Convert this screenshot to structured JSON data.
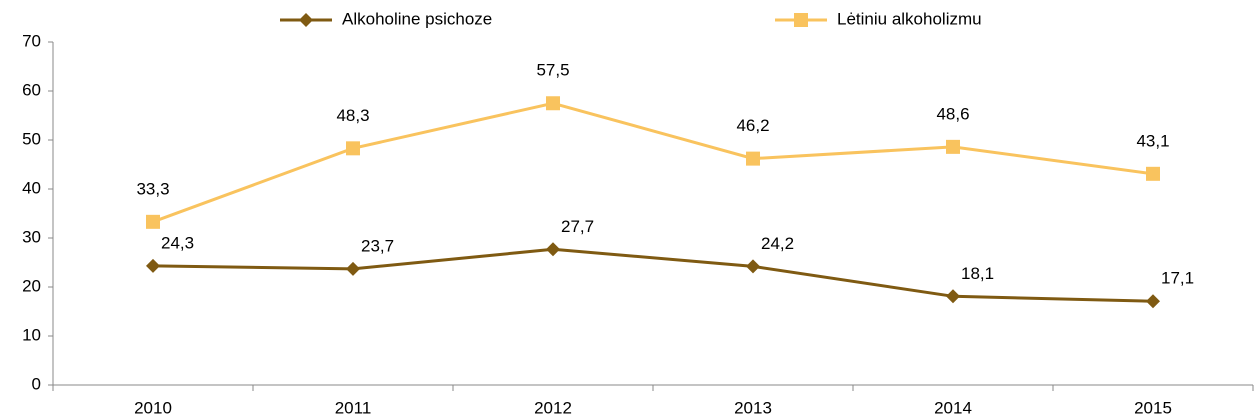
{
  "chart_data": {
    "type": "line",
    "categories": [
      "2010",
      "2011",
      "2012",
      "2013",
      "2014",
      "2015"
    ],
    "series": [
      {
        "name": "Alkoholine psichoze",
        "color": "#7f5a12",
        "marker": "diamond",
        "values": [
          24.3,
          23.7,
          27.7,
          24.2,
          18.1,
          17.1
        ],
        "value_labels": [
          "24,3",
          "23,7",
          "27,7",
          "24,2",
          "18,1",
          "17,1"
        ]
      },
      {
        "name": "Lėtiniu alkoholizmu",
        "color": "#f9c35e",
        "marker": "square",
        "values": [
          33.3,
          48.3,
          57.5,
          46.2,
          48.6,
          43.1
        ],
        "value_labels": [
          "33,3",
          "48,3",
          "57,5",
          "46,2",
          "48,6",
          "43,1"
        ]
      }
    ],
    "ylim": [
      0,
      70
    ],
    "yticks": [
      0,
      10,
      20,
      30,
      40,
      50,
      60,
      70
    ],
    "grid": false,
    "legend": "top"
  }
}
